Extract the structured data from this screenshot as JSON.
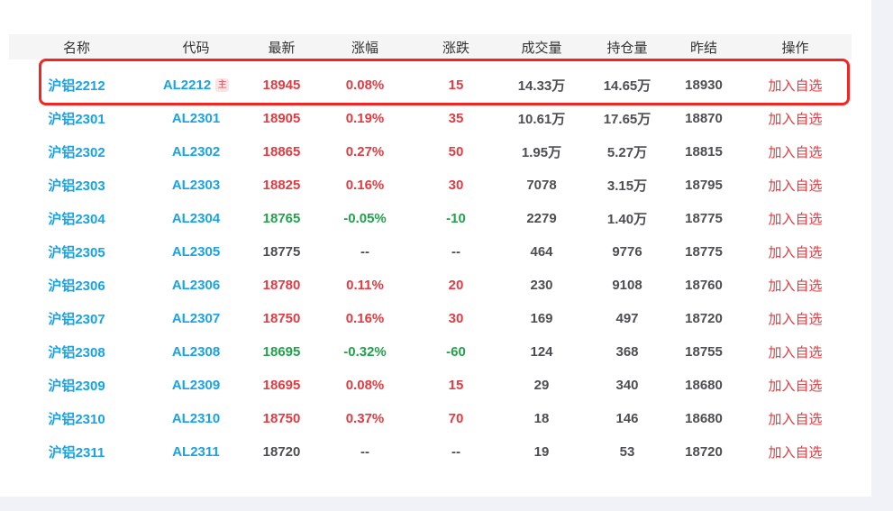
{
  "colors": {
    "page_bg": "#F0F2F7",
    "card_bg": "#FFFFFF",
    "header_bg": "#F5F5F6",
    "header_text": "#333333",
    "up": "#E23B41",
    "down": "#21A24B",
    "neutral": "#4E4E52",
    "link_blue": "#18A3E8",
    "action_red": "#E23B41",
    "badge_bg": "#FBE3E5",
    "badge_text": "#E2414B",
    "highlight_border": "#F42521"
  },
  "table": {
    "columns": [
      {
        "key": "name",
        "label": "名称"
      },
      {
        "key": "code",
        "label": "代码"
      },
      {
        "key": "latest",
        "label": "最新"
      },
      {
        "key": "pct",
        "label": "涨幅"
      },
      {
        "key": "chg",
        "label": "涨跌"
      },
      {
        "key": "vol",
        "label": "成交量"
      },
      {
        "key": "oi",
        "label": "持仓量"
      },
      {
        "key": "prev",
        "label": "昨结"
      },
      {
        "key": "action",
        "label": "操作"
      }
    ],
    "main_badge_label": "主",
    "action_label": "加入自选",
    "rows": [
      {
        "name": "沪铝2212",
        "code": "AL2212",
        "main": true,
        "latest": "18945",
        "pct": "0.08%",
        "chg": "15",
        "vol": "14.33万",
        "oi": "14.65万",
        "prev": "18930",
        "trend": "up",
        "highlighted": true
      },
      {
        "name": "沪铝2301",
        "code": "AL2301",
        "main": false,
        "latest": "18905",
        "pct": "0.19%",
        "chg": "35",
        "vol": "10.61万",
        "oi": "17.65万",
        "prev": "18870",
        "trend": "up",
        "highlighted": false
      },
      {
        "name": "沪铝2302",
        "code": "AL2302",
        "main": false,
        "latest": "18865",
        "pct": "0.27%",
        "chg": "50",
        "vol": "1.95万",
        "oi": "5.27万",
        "prev": "18815",
        "trend": "up",
        "highlighted": false
      },
      {
        "name": "沪铝2303",
        "code": "AL2303",
        "main": false,
        "latest": "18825",
        "pct": "0.16%",
        "chg": "30",
        "vol": "7078",
        "oi": "3.15万",
        "prev": "18795",
        "trend": "up",
        "highlighted": false
      },
      {
        "name": "沪铝2304",
        "code": "AL2304",
        "main": false,
        "latest": "18765",
        "pct": "-0.05%",
        "chg": "-10",
        "vol": "2279",
        "oi": "1.40万",
        "prev": "18775",
        "trend": "down",
        "highlighted": false
      },
      {
        "name": "沪铝2305",
        "code": "AL2305",
        "main": false,
        "latest": "18775",
        "pct": "--",
        "chg": "--",
        "vol": "464",
        "oi": "9776",
        "prev": "18775",
        "trend": "flat",
        "highlighted": false
      },
      {
        "name": "沪铝2306",
        "code": "AL2306",
        "main": false,
        "latest": "18780",
        "pct": "0.11%",
        "chg": "20",
        "vol": "230",
        "oi": "9108",
        "prev": "18760",
        "trend": "up",
        "highlighted": false
      },
      {
        "name": "沪铝2307",
        "code": "AL2307",
        "main": false,
        "latest": "18750",
        "pct": "0.16%",
        "chg": "30",
        "vol": "169",
        "oi": "497",
        "prev": "18720",
        "trend": "up",
        "highlighted": false
      },
      {
        "name": "沪铝2308",
        "code": "AL2308",
        "main": false,
        "latest": "18695",
        "pct": "-0.32%",
        "chg": "-60",
        "vol": "124",
        "oi": "368",
        "prev": "18755",
        "trend": "down",
        "highlighted": false
      },
      {
        "name": "沪铝2309",
        "code": "AL2309",
        "main": false,
        "latest": "18695",
        "pct": "0.08%",
        "chg": "15",
        "vol": "29",
        "oi": "340",
        "prev": "18680",
        "trend": "up",
        "highlighted": false
      },
      {
        "name": "沪铝2310",
        "code": "AL2310",
        "main": false,
        "latest": "18750",
        "pct": "0.37%",
        "chg": "70",
        "vol": "18",
        "oi": "146",
        "prev": "18680",
        "trend": "up",
        "highlighted": false
      },
      {
        "name": "沪铝2311",
        "code": "AL2311",
        "main": false,
        "latest": "18720",
        "pct": "--",
        "chg": "--",
        "vol": "19",
        "oi": "53",
        "prev": "18720",
        "trend": "flat",
        "highlighted": false
      }
    ]
  }
}
